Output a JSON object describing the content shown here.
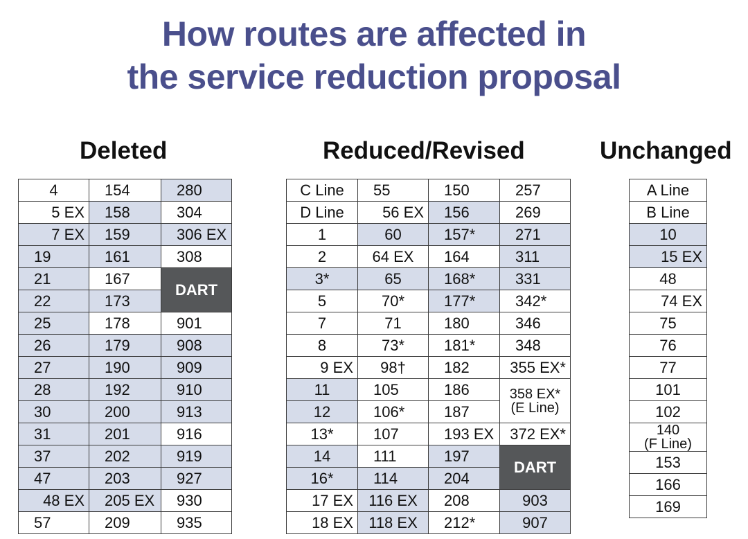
{
  "title": {
    "line1": "How routes are affected in",
    "line2": "the service reduction proposal"
  },
  "headings": {
    "deleted": "Deleted",
    "reduced": "Reduced/Revised",
    "unchanged": "Unchanged"
  },
  "dart_label": "DART",
  "deleted": {
    "col1": [
      "4",
      "5 EX",
      "7 EX",
      "19",
      "21",
      "22",
      "25",
      "26",
      "27",
      "28",
      "30",
      "31",
      "37",
      "47",
      "48 EX",
      "57"
    ],
    "col2": [
      "154",
      "158",
      "159",
      "161",
      "167",
      "173",
      "178",
      "179",
      "190",
      "192",
      "200",
      "201",
      "202",
      "203",
      "205 EX",
      "209"
    ],
    "col3": [
      "280",
      "304",
      "306 EX",
      "308",
      "901",
      "908",
      "909",
      "910",
      "913",
      "916",
      "919",
      "927",
      "930",
      "935"
    ]
  },
  "reduced": {
    "col1": [
      "C Line",
      "D Line",
      "1",
      "2",
      "3*",
      "5",
      "7",
      "8",
      "9 EX",
      "11",
      "12",
      "13*",
      "14",
      "16*",
      "17 EX",
      "18 EX"
    ],
    "col2": [
      "55",
      "56 EX",
      "60",
      "64 EX",
      "65",
      "70*",
      "71",
      "73*",
      "98†",
      "105",
      "106*",
      "107",
      "111",
      "114",
      "116 EX",
      "118 EX"
    ],
    "col3": [
      "150",
      "156",
      "157*",
      "164",
      "168*",
      "177*",
      "180",
      "181*",
      "182",
      "186",
      "187",
      "193 EX",
      "197",
      "204",
      "208",
      "212*"
    ],
    "col4": [
      "257",
      "269",
      "271",
      "311",
      "331",
      "342*",
      "346",
      "348",
      "355 EX*",
      "358 EX*",
      "(E Line)",
      "372 EX*",
      "903",
      "907"
    ]
  },
  "unchanged": [
    "A Line",
    "B Line",
    "10",
    "15 EX",
    "48",
    "74 EX",
    "75",
    "76",
    "77",
    "101",
    "102",
    "140",
    "(F Line)",
    "153",
    "166",
    "169"
  ]
}
